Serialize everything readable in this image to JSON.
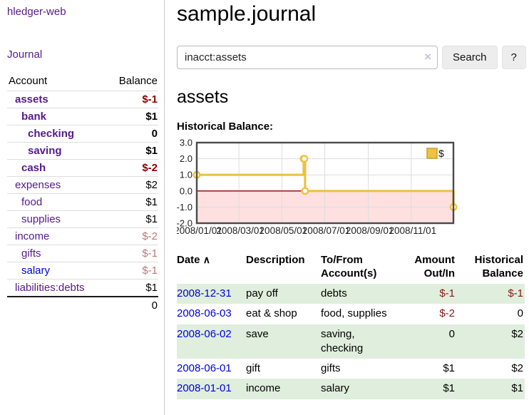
{
  "app_title": "hledger-web",
  "sidebar": {
    "journal_link": "Journal",
    "accounts": {
      "header": {
        "account": "Account",
        "balance": "Balance"
      },
      "rows": [
        {
          "name": "assets",
          "level": 0,
          "bold": true,
          "balance": "$-1",
          "balance_class": "neg-strong"
        },
        {
          "name": "bank",
          "level": 1,
          "bold": true,
          "balance": "$1"
        },
        {
          "name": "checking",
          "level": 2,
          "bold": true,
          "balance": "0"
        },
        {
          "name": "saving",
          "level": 2,
          "bold": true,
          "balance": "$1"
        },
        {
          "name": "cash",
          "level": 1,
          "bold": true,
          "balance": "$-2",
          "balance_class": "neg-strong"
        },
        {
          "name": "expenses",
          "level": 0,
          "bold": false,
          "balance": "$2"
        },
        {
          "name": "food",
          "level": 1,
          "bold": false,
          "balance": "$1"
        },
        {
          "name": "supplies",
          "level": 1,
          "bold": false,
          "balance": "$1"
        },
        {
          "name": "income",
          "level": 0,
          "bold": false,
          "balance": "$-2",
          "balance_class": "neg-soft"
        },
        {
          "name": "gifts",
          "level": 1,
          "bold": false,
          "balance": "$-1",
          "balance_class": "neg-soft"
        },
        {
          "name": "salary",
          "level": 1,
          "bold": false,
          "blue": true,
          "balance": "$-1",
          "balance_class": "neg-soft"
        },
        {
          "name": "liabilities:debts",
          "level": 0,
          "bold": false,
          "balance": "$1"
        }
      ],
      "total": "0"
    }
  },
  "main": {
    "title": "sample.journal",
    "search": {
      "value": "inacct:assets",
      "clear_icon": "×",
      "search_button": "Search",
      "help_button": "?"
    },
    "account_heading": "assets",
    "chart_label": "Historical Balance:"
  },
  "chart_data": {
    "type": "line",
    "title": "Historical Balance",
    "x_range": [
      "2008-01-01",
      "2008-12-31"
    ],
    "ylim": [
      -2.0,
      3.0
    ],
    "y_ticks": [
      "3.0",
      "2.0",
      "1.0",
      "0.0",
      "-1.0",
      "-2.0"
    ],
    "x_ticks": [
      {
        "date": "2008-01-01",
        "label": "2008/01/01"
      },
      {
        "date": "2008-03-01",
        "label": "2008/03/01"
      },
      {
        "date": "2008-05-01",
        "label": "2008/05/01"
      },
      {
        "date": "2008-07-01",
        "label": "2008/07/01"
      },
      {
        "date": "2008-09-01",
        "label": "2008/09/01"
      },
      {
        "date": "2008-11-01",
        "label": "2008/11/01"
      }
    ],
    "series": [
      {
        "name": "$",
        "color": "#EDC240",
        "style": "step-line-with-markers",
        "points": [
          [
            "2008-01-01",
            1
          ],
          [
            "2008-06-01",
            2
          ],
          [
            "2008-06-02",
            2
          ],
          [
            "2008-06-03",
            0
          ],
          [
            "2008-12-31",
            -1
          ]
        ]
      }
    ],
    "legend": {
      "position": "top-right",
      "entries": [
        "$"
      ]
    },
    "grid": true,
    "grid_color": "#dcdcdc",
    "plot_border_color": "#4a4a4a",
    "negative_region_color": "rgba(255,0,0,0.12)",
    "zero_line_color": "#8b0000"
  },
  "register": {
    "header": {
      "date": "Date",
      "sort_indicator": "∧",
      "description": "Description",
      "accounts": "To/From Account(s)",
      "amount": "Amount Out/In",
      "balance": "Historical Balance"
    },
    "rows": [
      {
        "date": "2008-12-31",
        "description": "pay off",
        "accounts": "debts",
        "amount": "$-1",
        "amount_class": "neg",
        "balance": "$-1",
        "balance_class": "neg",
        "striped": true
      },
      {
        "date": "2008-06-03",
        "description": "eat & shop",
        "accounts": "food, supplies",
        "amount": "$-2",
        "amount_class": "neg",
        "balance": "0",
        "striped": false
      },
      {
        "date": "2008-06-02",
        "description": "save",
        "accounts": "saving, checking",
        "amount": "0",
        "balance": "$2",
        "striped": true
      },
      {
        "date": "2008-06-01",
        "description": "gift",
        "accounts": "gifts",
        "amount": "$1",
        "balance": "$2",
        "striped": false
      },
      {
        "date": "2008-01-01",
        "description": "income",
        "accounts": "salary",
        "amount": "$1",
        "balance": "$1",
        "striped": true
      }
    ]
  },
  "colors": {
    "link_purple": "#551a8b",
    "link_blue": "#0000dd",
    "negative_strong": "#8b0000",
    "negative_soft": "#bb7878",
    "row_stripe_green": "#e0eedd",
    "series_gold": "#EDC240"
  }
}
